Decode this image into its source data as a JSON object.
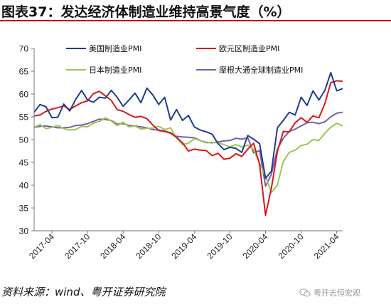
{
  "figure": {
    "title": "图表37：发达经济体制造业维持高景气度（%）",
    "source": "资料来源：wind、粤开证券研究院",
    "watermark": "粤开志恒宏观"
  },
  "chart_data": {
    "type": "line",
    "title": "",
    "xlabel": "",
    "ylabel": "",
    "ylim": [
      30,
      70
    ],
    "yticks": [
      30,
      35,
      40,
      45,
      50,
      55,
      60,
      65,
      70
    ],
    "xtick_labels": [
      "2017-04",
      "2017-10",
      "2018-04",
      "2018-10",
      "2019-04",
      "2019-10",
      "2020-04",
      "2020-10",
      "2021-04"
    ],
    "grid": false,
    "legend": "top",
    "x": [
      "2017-01",
      "2017-02",
      "2017-03",
      "2017-04",
      "2017-05",
      "2017-06",
      "2017-07",
      "2017-08",
      "2017-09",
      "2017-10",
      "2017-11",
      "2017-12",
      "2018-01",
      "2018-02",
      "2018-03",
      "2018-04",
      "2018-05",
      "2018-06",
      "2018-07",
      "2018-08",
      "2018-09",
      "2018-10",
      "2018-11",
      "2018-12",
      "2019-01",
      "2019-02",
      "2019-03",
      "2019-04",
      "2019-05",
      "2019-06",
      "2019-07",
      "2019-08",
      "2019-09",
      "2019-10",
      "2019-11",
      "2019-12",
      "2020-01",
      "2020-02",
      "2020-03",
      "2020-04",
      "2020-05",
      "2020-06",
      "2020-07",
      "2020-08",
      "2020-09",
      "2020-10",
      "2020-11",
      "2020-12",
      "2021-01",
      "2021-02",
      "2021-03",
      "2021-04",
      "2021-05"
    ],
    "series": [
      {
        "name": "美国制造业PMI",
        "color": "#1f3e8c",
        "values": [
          56.0,
          57.7,
          57.2,
          54.8,
          54.9,
          57.8,
          56.3,
          58.8,
          60.8,
          58.7,
          58.2,
          59.3,
          59.1,
          60.8,
          59.3,
          57.3,
          58.7,
          60.2,
          58.1,
          61.3,
          59.8,
          57.7,
          59.3,
          54.3,
          56.6,
          54.2,
          55.3,
          52.8,
          52.1,
          51.7,
          51.2,
          49.1,
          47.8,
          48.3,
          48.1,
          47.2,
          50.9,
          50.1,
          49.1,
          41.5,
          43.1,
          52.6,
          54.2,
          56.0,
          55.4,
          59.3,
          57.5,
          60.7,
          58.7,
          60.8,
          64.7,
          60.7,
          61.2
        ]
      },
      {
        "name": "欧元区制造业PMI",
        "color": "#d7191c",
        "values": [
          55.2,
          55.4,
          56.2,
          56.7,
          57.0,
          57.4,
          56.6,
          57.4,
          58.1,
          58.5,
          60.1,
          60.6,
          59.6,
          58.6,
          56.6,
          56.2,
          55.5,
          54.9,
          55.1,
          54.6,
          53.2,
          52.0,
          51.8,
          51.4,
          50.5,
          49.3,
          47.5,
          47.9,
          47.7,
          47.6,
          46.5,
          47.0,
          45.7,
          45.9,
          46.9,
          46.3,
          47.9,
          49.2,
          44.5,
          33.4,
          39.4,
          47.4,
          51.8,
          51.7,
          53.7,
          54.8,
          53.8,
          55.2,
          54.8,
          57.9,
          62.5,
          62.9,
          62.8
        ]
      },
      {
        "name": "日本制造业PMI",
        "color": "#9ac752",
        "values": [
          52.7,
          53.3,
          52.4,
          52.7,
          53.1,
          52.4,
          52.1,
          52.2,
          52.9,
          52.8,
          53.6,
          54.0,
          54.8,
          54.1,
          53.1,
          53.8,
          52.8,
          53.0,
          52.3,
          52.5,
          52.5,
          52.9,
          52.2,
          52.6,
          50.3,
          48.9,
          49.2,
          50.2,
          49.8,
          49.3,
          49.4,
          49.3,
          48.9,
          48.4,
          48.9,
          48.4,
          48.8,
          47.8,
          44.8,
          41.9,
          38.4,
          40.1,
          45.2,
          47.2,
          47.7,
          48.7,
          49.0,
          50.0,
          49.8,
          51.4,
          52.7,
          53.6,
          53.0
        ]
      },
      {
        "name": "摩根大通全球制造业PMI",
        "color": "#7b5ea7",
        "values": [
          52.7,
          52.9,
          53.0,
          52.8,
          52.6,
          52.6,
          52.7,
          53.1,
          53.2,
          53.5,
          54.0,
          54.5,
          54.4,
          54.2,
          53.4,
          53.5,
          53.1,
          53.0,
          52.8,
          52.6,
          52.2,
          52.1,
          51.9,
          51.5,
          50.7,
          50.6,
          50.5,
          50.4,
          49.8,
          49.4,
          49.3,
          49.5,
          49.7,
          49.8,
          50.3,
          50.1,
          50.4,
          47.1,
          47.6,
          39.8,
          42.4,
          47.9,
          50.3,
          51.8,
          52.3,
          53.0,
          53.7,
          53.8,
          53.5,
          53.9,
          55.0,
          55.8,
          56.0
        ]
      }
    ]
  }
}
